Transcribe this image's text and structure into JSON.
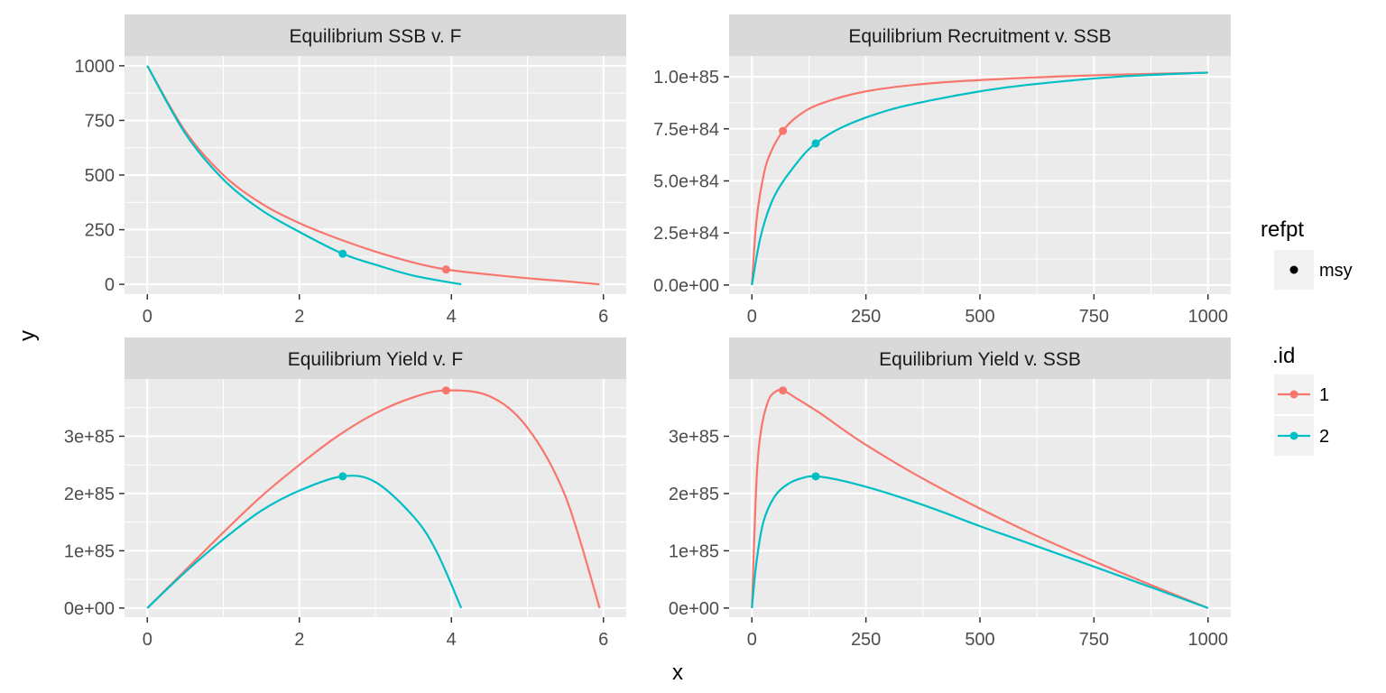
{
  "colors": {
    "id_1": "#F8766D",
    "id_2": "#00BFC4",
    "panel_bg": "#EBEBEB",
    "strip_bg": "#D9D9D9",
    "grid": "#FFFFFF"
  },
  "chart_data": {
    "type": "line",
    "xlabel": "x",
    "ylabel": "y",
    "legend": {
      "placement": "right",
      "refpt": {
        "title": "refpt",
        "items": [
          "msy"
        ]
      },
      "id": {
        "title": ".id",
        "items": [
          "1",
          "2"
        ]
      }
    },
    "panels": [
      {
        "title": "Equilibrium SSB v. F",
        "xlim": [
          -0.3,
          6.3
        ],
        "ylim": [
          -45,
          1045
        ],
        "xticks": [
          0,
          2,
          4,
          6
        ],
        "xtick_labels": [
          "0",
          "2",
          "4",
          "6"
        ],
        "yticks": [
          0,
          250,
          500,
          750,
          1000
        ],
        "ytick_labels": [
          "0",
          "250",
          "500",
          "750",
          "1000"
        ],
        "series": [
          {
            "name": "1",
            "x": [
              0,
              0.5,
              1,
              1.5,
              2,
              2.5,
              3,
              3.5,
              3.93,
              4.5,
              5,
              5.5,
              5.95
            ],
            "y": [
              1000,
              700,
              500,
              370,
              280,
              210,
              150,
              100,
              68,
              45,
              28,
              14,
              0
            ],
            "msy": [
              3.93,
              68
            ]
          },
          {
            "name": "2",
            "x": [
              0,
              0.5,
              1,
              1.5,
              2,
              2.57,
              3,
              3.5,
              4.13
            ],
            "y": [
              1000,
              690,
              480,
              340,
              240,
              140,
              90,
              40,
              0
            ],
            "msy": [
              2.57,
              140
            ]
          }
        ]
      },
      {
        "title": "Equilibrium Recruitment v. SSB",
        "xlim": [
          -50,
          1050
        ],
        "ylim": [
          -4.4e+83,
          1.1e+85
        ],
        "xticks": [
          0,
          250,
          500,
          750,
          1000
        ],
        "xtick_labels": [
          "0",
          "250",
          "500",
          "750",
          "1000"
        ],
        "yticks": [
          0,
          2.5e+84,
          5e+84,
          7.5e+84,
          1e+85
        ],
        "ytick_labels": [
          "0.0e+00",
          "2.5e+84",
          "5.0e+84",
          "7.5e+84",
          "1.0e+85"
        ],
        "series": [
          {
            "name": "1",
            "x": [
              0,
              10,
              25,
              40,
              68,
              100,
              150,
              250,
              400,
              600,
              800,
              1000
            ],
            "y": [
              0,
              3.1e+84,
              5.2e+84,
              6.3e+84,
              7.4e+84,
              8.1e+84,
              8.7e+84,
              9.3e+84,
              9.7e+84,
              9.95e+84,
              1.01e+85,
              1.02e+85
            ],
            "msy": [
              68,
              7.4e+84
            ]
          },
          {
            "name": "2",
            "x": [
              0,
              20,
              50,
              100,
              140,
              200,
              300,
              400,
              500,
              600,
              800,
              1000
            ],
            "y": [
              0,
              2.4e+84,
              4.3e+84,
              5.9e+84,
              6.8e+84,
              7.6e+84,
              8.4e+84,
              8.9e+84,
              9.3e+84,
              9.6e+84,
              1e+85,
              1.02e+85
            ],
            "msy": [
              140,
              6.8e+84
            ]
          }
        ]
      },
      {
        "title": "Equilibrium Yield v. F",
        "xlim": [
          -0.3,
          6.3
        ],
        "ylim": [
          -1.6e+84,
          4e+85
        ],
        "xticks": [
          0,
          2,
          4,
          6
        ],
        "xtick_labels": [
          "0",
          "2",
          "4",
          "6"
        ],
        "yticks": [
          0,
          1e+85,
          2e+85,
          3e+85
        ],
        "ytick_labels": [
          "0e+00",
          "1e+85",
          "2e+85",
          "3e+85"
        ],
        "series": [
          {
            "name": "1",
            "x": [
              0,
              0.5,
              1,
              1.5,
              2,
              2.5,
              3,
              3.5,
              3.93,
              4.5,
              5,
              5.5,
              5.95
            ],
            "y": [
              0,
              6.6e+84,
              1.32e+85,
              1.95e+85,
              2.5e+85,
              3e+85,
              3.4e+85,
              3.68e+85,
              3.8e+85,
              3.7e+85,
              3.15e+85,
              1.95e+85,
              0
            ],
            "msy": [
              3.93,
              3.8e+85
            ]
          },
          {
            "name": "2",
            "x": [
              0,
              0.5,
              1,
              1.5,
              2,
              2.57,
              3,
              3.5,
              3.8,
              4.13
            ],
            "y": [
              0,
              6.3e+84,
              1.2e+85,
              1.7e+85,
              2.05e+85,
              2.3e+85,
              2.2e+85,
              1.6e+85,
              1e+85,
              0
            ],
            "msy": [
              2.57,
              2.3e+85
            ]
          }
        ]
      },
      {
        "title": "Equilibrium Yield v. SSB",
        "xlim": [
          -50,
          1050
        ],
        "ylim": [
          -1.6e+84,
          4e+85
        ],
        "xticks": [
          0,
          250,
          500,
          750,
          1000
        ],
        "xtick_labels": [
          "0",
          "250",
          "500",
          "750",
          "1000"
        ],
        "yticks": [
          0,
          1e+85,
          2e+85,
          3e+85
        ],
        "ytick_labels": [
          "0e+00",
          "1e+85",
          "2e+85",
          "3e+85"
        ],
        "series": [
          {
            "name": "1",
            "x": [
              0,
              10,
              20,
              35,
              50,
              68,
              100,
              150,
              250,
              400,
              600,
              800,
              1000
            ],
            "y": [
              0,
              2.2e+85,
              3.1e+85,
              3.6e+85,
              3.77e+85,
              3.8e+85,
              3.65e+85,
              3.4e+85,
              2.85e+85,
              2.15e+85,
              1.35e+85,
              6.5e+84,
              0
            ],
            "msy": [
              68,
              3.8e+85
            ]
          },
          {
            "name": "2",
            "x": [
              0,
              10,
              25,
              50,
              80,
              110,
              140,
              200,
              300,
              400,
              500,
              600,
              800,
              1000
            ],
            "y": [
              0,
              8e+84,
              1.5e+85,
              1.95e+85,
              2.17e+85,
              2.27e+85,
              2.3e+85,
              2.22e+85,
              2e+85,
              1.73e+85,
              1.43e+85,
              1.15e+85,
              5.8e+84,
              0
            ],
            "msy": [
              140,
              2.3e+85
            ]
          }
        ]
      }
    ]
  }
}
